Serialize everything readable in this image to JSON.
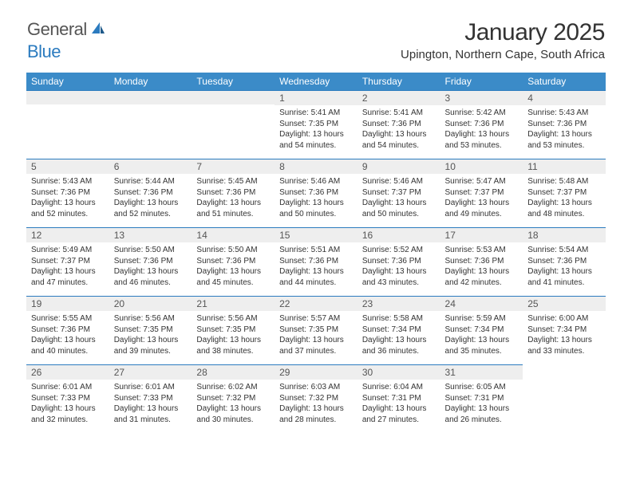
{
  "brand": {
    "name1": "General",
    "name2": "Blue"
  },
  "title": "January 2025",
  "location": "Upington, Northern Cape, South Africa",
  "colors": {
    "header_bg": "#3b8bc8",
    "header_text": "#ffffff",
    "day_bar_bg": "#eeeeee",
    "day_bar_border": "#2b7bbf",
    "body_text": "#333333"
  },
  "fonts": {
    "title_size": 30,
    "location_size": 15,
    "dayhdr_size": 12,
    "cell_size": 10
  },
  "day_headers": [
    "Sunday",
    "Monday",
    "Tuesday",
    "Wednesday",
    "Thursday",
    "Friday",
    "Saturday"
  ],
  "weeks": [
    [
      null,
      null,
      null,
      {
        "n": "1",
        "sunrise": "5:41 AM",
        "sunset": "7:35 PM",
        "daylight": "13 hours and 54 minutes."
      },
      {
        "n": "2",
        "sunrise": "5:41 AM",
        "sunset": "7:36 PM",
        "daylight": "13 hours and 54 minutes."
      },
      {
        "n": "3",
        "sunrise": "5:42 AM",
        "sunset": "7:36 PM",
        "daylight": "13 hours and 53 minutes."
      },
      {
        "n": "4",
        "sunrise": "5:43 AM",
        "sunset": "7:36 PM",
        "daylight": "13 hours and 53 minutes."
      }
    ],
    [
      {
        "n": "5",
        "sunrise": "5:43 AM",
        "sunset": "7:36 PM",
        "daylight": "13 hours and 52 minutes."
      },
      {
        "n": "6",
        "sunrise": "5:44 AM",
        "sunset": "7:36 PM",
        "daylight": "13 hours and 52 minutes."
      },
      {
        "n": "7",
        "sunrise": "5:45 AM",
        "sunset": "7:36 PM",
        "daylight": "13 hours and 51 minutes."
      },
      {
        "n": "8",
        "sunrise": "5:46 AM",
        "sunset": "7:36 PM",
        "daylight": "13 hours and 50 minutes."
      },
      {
        "n": "9",
        "sunrise": "5:46 AM",
        "sunset": "7:37 PM",
        "daylight": "13 hours and 50 minutes."
      },
      {
        "n": "10",
        "sunrise": "5:47 AM",
        "sunset": "7:37 PM",
        "daylight": "13 hours and 49 minutes."
      },
      {
        "n": "11",
        "sunrise": "5:48 AM",
        "sunset": "7:37 PM",
        "daylight": "13 hours and 48 minutes."
      }
    ],
    [
      {
        "n": "12",
        "sunrise": "5:49 AM",
        "sunset": "7:37 PM",
        "daylight": "13 hours and 47 minutes."
      },
      {
        "n": "13",
        "sunrise": "5:50 AM",
        "sunset": "7:36 PM",
        "daylight": "13 hours and 46 minutes."
      },
      {
        "n": "14",
        "sunrise": "5:50 AM",
        "sunset": "7:36 PM",
        "daylight": "13 hours and 45 minutes."
      },
      {
        "n": "15",
        "sunrise": "5:51 AM",
        "sunset": "7:36 PM",
        "daylight": "13 hours and 44 minutes."
      },
      {
        "n": "16",
        "sunrise": "5:52 AM",
        "sunset": "7:36 PM",
        "daylight": "13 hours and 43 minutes."
      },
      {
        "n": "17",
        "sunrise": "5:53 AM",
        "sunset": "7:36 PM",
        "daylight": "13 hours and 42 minutes."
      },
      {
        "n": "18",
        "sunrise": "5:54 AM",
        "sunset": "7:36 PM",
        "daylight": "13 hours and 41 minutes."
      }
    ],
    [
      {
        "n": "19",
        "sunrise": "5:55 AM",
        "sunset": "7:36 PM",
        "daylight": "13 hours and 40 minutes."
      },
      {
        "n": "20",
        "sunrise": "5:56 AM",
        "sunset": "7:35 PM",
        "daylight": "13 hours and 39 minutes."
      },
      {
        "n": "21",
        "sunrise": "5:56 AM",
        "sunset": "7:35 PM",
        "daylight": "13 hours and 38 minutes."
      },
      {
        "n": "22",
        "sunrise": "5:57 AM",
        "sunset": "7:35 PM",
        "daylight": "13 hours and 37 minutes."
      },
      {
        "n": "23",
        "sunrise": "5:58 AM",
        "sunset": "7:34 PM",
        "daylight": "13 hours and 36 minutes."
      },
      {
        "n": "24",
        "sunrise": "5:59 AM",
        "sunset": "7:34 PM",
        "daylight": "13 hours and 35 minutes."
      },
      {
        "n": "25",
        "sunrise": "6:00 AM",
        "sunset": "7:34 PM",
        "daylight": "13 hours and 33 minutes."
      }
    ],
    [
      {
        "n": "26",
        "sunrise": "6:01 AM",
        "sunset": "7:33 PM",
        "daylight": "13 hours and 32 minutes."
      },
      {
        "n": "27",
        "sunrise": "6:01 AM",
        "sunset": "7:33 PM",
        "daylight": "13 hours and 31 minutes."
      },
      {
        "n": "28",
        "sunrise": "6:02 AM",
        "sunset": "7:32 PM",
        "daylight": "13 hours and 30 minutes."
      },
      {
        "n": "29",
        "sunrise": "6:03 AM",
        "sunset": "7:32 PM",
        "daylight": "13 hours and 28 minutes."
      },
      {
        "n": "30",
        "sunrise": "6:04 AM",
        "sunset": "7:31 PM",
        "daylight": "13 hours and 27 minutes."
      },
      {
        "n": "31",
        "sunrise": "6:05 AM",
        "sunset": "7:31 PM",
        "daylight": "13 hours and 26 minutes."
      },
      null
    ]
  ],
  "labels": {
    "sunrise": "Sunrise:",
    "sunset": "Sunset:",
    "daylight": "Daylight:"
  }
}
